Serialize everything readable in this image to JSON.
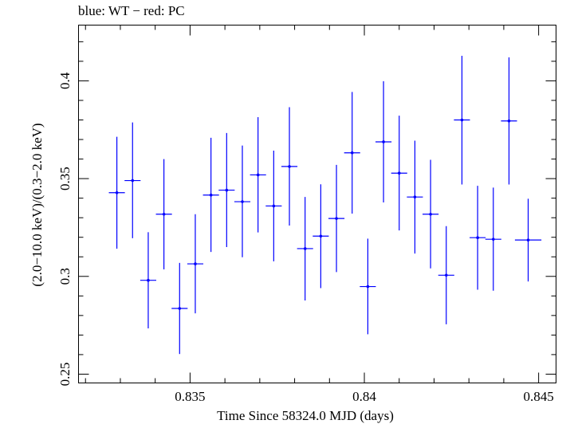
{
  "chart_data": {
    "type": "scatter",
    "title": "blue: WT − red: PC",
    "xlabel": "Time Since 58324.0 MJD (days)",
    "ylabel": "(2.0−10.0 keV)/(0.3−2.0 keV)",
    "xlim": [
      0.8318,
      0.8455
    ],
    "ylim": [
      0.2455,
      0.4285
    ],
    "xticks": [
      0.835,
      0.84,
      0.845
    ],
    "xtick_labels": [
      "0.835",
      "0.84",
      "0.845"
    ],
    "yticks": [
      0.25,
      0.3,
      0.35,
      0.4
    ],
    "ytick_labels": [
      "0.25",
      "0.3",
      "0.35",
      "0.4"
    ],
    "grid": false,
    "series": [
      {
        "name": "WT",
        "color": "#0000ff",
        "points": [
          {
            "x": 0.8329,
            "y": 0.3428,
            "xerr": 0.00023,
            "ylo": 0.3142,
            "yhi": 0.3714
          },
          {
            "x": 0.83335,
            "y": 0.349,
            "xerr": 0.00023,
            "ylo": 0.3195,
            "yhi": 0.3787
          },
          {
            "x": 0.8338,
            "y": 0.298,
            "xerr": 0.00023,
            "ylo": 0.2734,
            "yhi": 0.3226
          },
          {
            "x": 0.83425,
            "y": 0.3318,
            "xerr": 0.00023,
            "ylo": 0.3036,
            "yhi": 0.36
          },
          {
            "x": 0.8347,
            "y": 0.2836,
            "xerr": 0.00023,
            "ylo": 0.2603,
            "yhi": 0.3069
          },
          {
            "x": 0.83515,
            "y": 0.3064,
            "xerr": 0.00023,
            "ylo": 0.2811,
            "yhi": 0.3318
          },
          {
            "x": 0.8356,
            "y": 0.3416,
            "xerr": 0.00023,
            "ylo": 0.3125,
            "yhi": 0.3709
          },
          {
            "x": 0.83605,
            "y": 0.3441,
            "xerr": 0.00023,
            "ylo": 0.315,
            "yhi": 0.3733
          },
          {
            "x": 0.8365,
            "y": 0.3382,
            "xerr": 0.00023,
            "ylo": 0.3098,
            "yhi": 0.3669
          },
          {
            "x": 0.83695,
            "y": 0.3519,
            "xerr": 0.00023,
            "ylo": 0.3225,
            "yhi": 0.3814
          },
          {
            "x": 0.8374,
            "y": 0.336,
            "xerr": 0.00023,
            "ylo": 0.3077,
            "yhi": 0.3643
          },
          {
            "x": 0.83785,
            "y": 0.3562,
            "xerr": 0.00023,
            "ylo": 0.326,
            "yhi": 0.3865
          },
          {
            "x": 0.8383,
            "y": 0.3142,
            "xerr": 0.00023,
            "ylo": 0.2877,
            "yhi": 0.3406
          },
          {
            "x": 0.83875,
            "y": 0.3206,
            "xerr": 0.00023,
            "ylo": 0.294,
            "yhi": 0.3471
          },
          {
            "x": 0.8392,
            "y": 0.3296,
            "xerr": 0.00023,
            "ylo": 0.3022,
            "yhi": 0.357
          },
          {
            "x": 0.83965,
            "y": 0.3632,
            "xerr": 0.00023,
            "ylo": 0.3321,
            "yhi": 0.3943
          },
          {
            "x": 0.8401,
            "y": 0.2948,
            "xerr": 0.00023,
            "ylo": 0.2704,
            "yhi": 0.3193
          },
          {
            "x": 0.84055,
            "y": 0.3688,
            "xerr": 0.00023,
            "ylo": 0.3378,
            "yhi": 0.3998
          },
          {
            "x": 0.841,
            "y": 0.3528,
            "xerr": 0.00023,
            "ylo": 0.3235,
            "yhi": 0.3822
          },
          {
            "x": 0.84145,
            "y": 0.3406,
            "xerr": 0.00023,
            "ylo": 0.3117,
            "yhi": 0.3694
          },
          {
            "x": 0.8419,
            "y": 0.3318,
            "xerr": 0.00023,
            "ylo": 0.3041,
            "yhi": 0.3596
          },
          {
            "x": 0.84235,
            "y": 0.3006,
            "xerr": 0.00023,
            "ylo": 0.2755,
            "yhi": 0.3257
          },
          {
            "x": 0.8428,
            "y": 0.38,
            "xerr": 0.00023,
            "ylo": 0.347,
            "yhi": 0.4128
          },
          {
            "x": 0.84325,
            "y": 0.3198,
            "xerr": 0.00023,
            "ylo": 0.2932,
            "yhi": 0.3463
          },
          {
            "x": 0.8437,
            "y": 0.319,
            "xerr": 0.00023,
            "ylo": 0.2927,
            "yhi": 0.3454
          },
          {
            "x": 0.84415,
            "y": 0.3795,
            "xerr": 0.00023,
            "ylo": 0.347,
            "yhi": 0.412
          },
          {
            "x": 0.8447,
            "y": 0.3186,
            "xerr": 0.00038,
            "ylo": 0.2974,
            "yhi": 0.3397
          }
        ]
      }
    ]
  }
}
